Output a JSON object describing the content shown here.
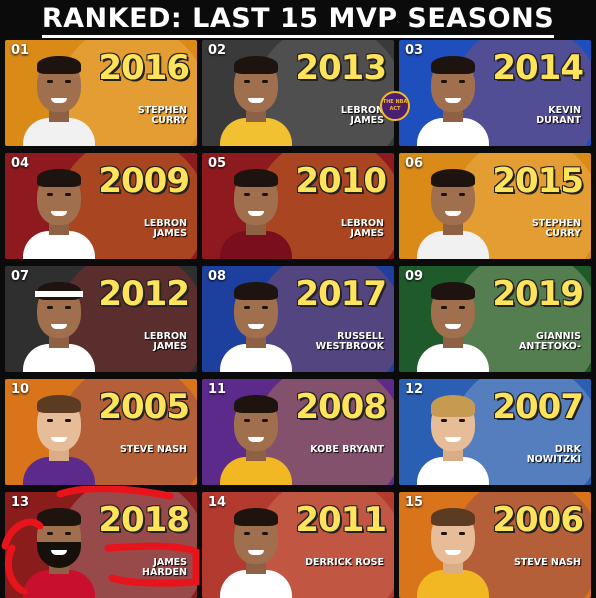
{
  "title": "RANKED: LAST 15 MVP SEASONS",
  "badge": "THE NBA ACT",
  "tiles": [
    {
      "rank": "01",
      "year": "2016",
      "name": "STEPHEN CURRY",
      "bg": "#d98a17",
      "shape": "#ffd17a",
      "jersey": "#f1f1f1",
      "skin": "dark"
    },
    {
      "rank": "02",
      "year": "2013",
      "name": "LEBRON JAMES",
      "bg": "#3a3a3a",
      "shape": "#8a8a8a",
      "jersey": "#f2c131",
      "skin": "dark"
    },
    {
      "rank": "03",
      "year": "2014",
      "name": "KEVIN DURANT",
      "bg": "#1f4fbd",
      "shape": "#d64a2e",
      "jersey": "#ffffff",
      "skin": "dark"
    },
    {
      "rank": "04",
      "year": "2009",
      "name": "LEBRON JAMES",
      "bg": "#8e1a20",
      "shape": "#f2b823",
      "jersey": "#ffffff",
      "skin": "dark"
    },
    {
      "rank": "05",
      "year": "2010",
      "name": "LEBRON JAMES",
      "bg": "#8e1a20",
      "shape": "#f2b823",
      "jersey": "#7a0e1c",
      "skin": "dark"
    },
    {
      "rank": "06",
      "year": "2015",
      "name": "STEPHEN CURRY",
      "bg": "#d98a17",
      "shape": "#ffd17a",
      "jersey": "#f1f1f1",
      "skin": "dark"
    },
    {
      "rank": "07",
      "year": "2012",
      "name": "LEBRON JAMES",
      "bg": "#2f2f2f",
      "shape": "#d23030",
      "jersey": "#ffffff",
      "skin": "dark"
    },
    {
      "rank": "08",
      "year": "2017",
      "name": "RUSSELL WESTBROOK",
      "bg": "#1d3f9e",
      "shape": "#e2562d",
      "jersey": "#ffffff",
      "skin": "dark"
    },
    {
      "rank": "09",
      "year": "2019",
      "name": "GIANNIS ANTETOKO-",
      "bg": "#1e5a2a",
      "shape": "#e7dcb4",
      "jersey": "#ffffff",
      "skin": "dark"
    },
    {
      "rank": "10",
      "year": "2005",
      "name": "STEVE NASH",
      "bg": "#d9741a",
      "shape": "#5b2a8a",
      "jersey": "#5b2a8a",
      "skin": "light"
    },
    {
      "rank": "11",
      "year": "2008",
      "name": "KOBE BRYANT",
      "bg": "#5b2a8a",
      "shape": "#f2b823",
      "jersey": "#f2b823",
      "skin": "dark"
    },
    {
      "rank": "12",
      "year": "2007",
      "name": "DIRK NOWITZKI",
      "bg": "#2a5fb3",
      "shape": "#c7d2e0",
      "jersey": "#ffffff",
      "skin": "blond"
    },
    {
      "rank": "13",
      "year": "2018",
      "name": "JAMES HARDEN",
      "bg": "#8a1c1c",
      "shape": "#c0c0c0",
      "jersey": "#c8102e",
      "skin": "beard"
    },
    {
      "rank": "14",
      "year": "2011",
      "name": "DERRICK ROSE",
      "bg": "#b23a2e",
      "shape": "#e8a47a",
      "jersey": "#ffffff",
      "skin": "dark"
    },
    {
      "rank": "15",
      "year": "2006",
      "name": "STEVE NASH",
      "bg": "#d9741a",
      "shape": "#5b2a8a",
      "jersey": "#f2b823",
      "skin": "light"
    }
  ]
}
